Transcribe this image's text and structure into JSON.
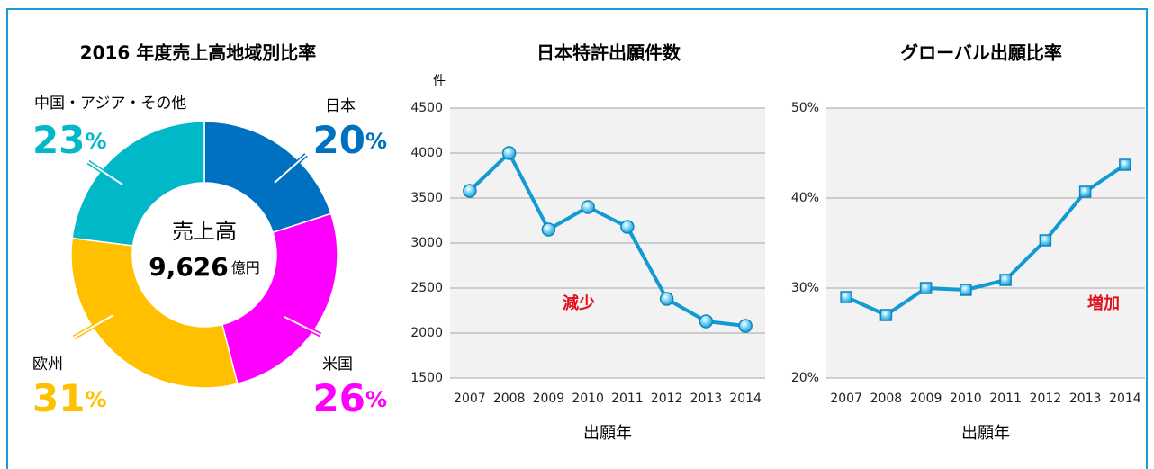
{
  "chart_data": [
    {
      "type": "donut",
      "title": "2016 年度売上高地域別比率",
      "categories": [
        "日本",
        "米国",
        "欧州",
        "中国・アジア・その他"
      ],
      "values": [
        20,
        26,
        31,
        23
      ],
      "value_labels": [
        "20%",
        "26%",
        "31%",
        "23%"
      ],
      "colors": [
        "#0070c0",
        "#ff00ff",
        "#ffc000",
        "#00b8c8"
      ],
      "center_label": "売上高",
      "center_value": "9,626",
      "center_unit": "億円"
    },
    {
      "type": "line",
      "title": "日本特許出願件数",
      "y_unit": "件",
      "x_label": "出願年",
      "categories": [
        "2007",
        "2008",
        "2009",
        "2010",
        "2011",
        "2012",
        "2013",
        "2014"
      ],
      "values": [
        3580,
        4000,
        3150,
        3400,
        3180,
        2380,
        2130,
        2080
      ],
      "color": "#129bd2",
      "marker": "circle",
      "ylim": [
        1500,
        4500
      ],
      "yticks": [
        1500,
        2000,
        2500,
        3000,
        3500,
        4000,
        4500
      ],
      "grid": true,
      "annotation": "減少"
    },
    {
      "type": "line",
      "title": "グローバル出願比率",
      "x_label": "出願年",
      "categories": [
        "2007",
        "2008",
        "2009",
        "2010",
        "2011",
        "2012",
        "2013",
        "2014"
      ],
      "values": [
        29,
        27,
        30,
        29.8,
        30.9,
        35.3,
        40.7,
        43.7
      ],
      "color": "#129bd2",
      "marker": "square",
      "ylim": [
        20,
        50
      ],
      "yticks": [
        {
          "value": 20,
          "label": "20%"
        },
        {
          "value": 30,
          "label": "30%"
        },
        {
          "value": 40,
          "label": "40%"
        },
        {
          "value": 50,
          "label": "50%"
        }
      ],
      "grid": true,
      "annotation": "増加"
    }
  ]
}
